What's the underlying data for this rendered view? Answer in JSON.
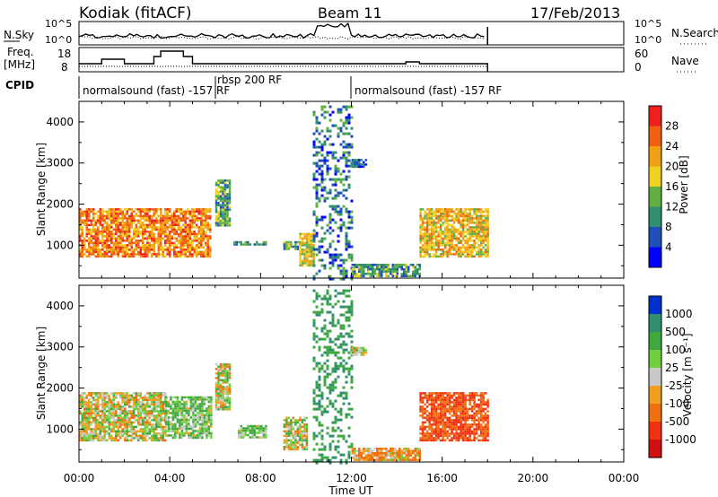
{
  "header": {
    "station": "Kodiak (fitACF)",
    "beam": "Beam 11",
    "date": "17/Feb/2013"
  },
  "noise_panel": {
    "left_label": "N.Sky",
    "right_label": "N.Search",
    "tick_top": "10^5",
    "tick_bottom": "10^0"
  },
  "freq_panel": {
    "left_label_1": "Freq.",
    "left_label_2": "[MHz]",
    "left_ticks": [
      "18",
      "8"
    ],
    "right_ticks": [
      "60",
      "0"
    ],
    "right_label": "Nave"
  },
  "cpid": {
    "label": "CPID",
    "segments": [
      {
        "text": "normalsound (fast) -157 RF",
        "start_hour": 0
      },
      {
        "text": "rbsp 200 RF",
        "start_hour": 6
      },
      {
        "text": "normalsound (fast) -157 RF",
        "start_hour": 12
      }
    ]
  },
  "time_axis": {
    "title": "Time UT",
    "ticks": [
      "00:00",
      "04:00",
      "08:00",
      "12:00",
      "16:00",
      "20:00",
      "00:00"
    ]
  },
  "power_colorbar": {
    "title": "Power [dB]",
    "ticks": [
      "28",
      "24",
      "20",
      "16",
      "12",
      "8",
      "4"
    ],
    "colors": [
      "#0000ff",
      "#1f4fb8",
      "#2f8f6f",
      "#5fb040",
      "#f0d020",
      "#f0a010",
      "#f06010",
      "#f02020"
    ]
  },
  "velocity_colorbar": {
    "title": "Velocity [m s⁻¹]",
    "ticks": [
      "1000",
      "500",
      "100",
      "25",
      "-25",
      "-100",
      "-500",
      "-1000"
    ],
    "colors": [
      "#0030d0",
      "#2f8f6f",
      "#3fa83f",
      "#70d040",
      "#c8c8c8",
      "#f0a020",
      "#f07010",
      "#f03010",
      "#d01010"
    ]
  },
  "chart_data": [
    {
      "type": "heatmap",
      "title": "Power",
      "ylabel": "Slant Range [km]",
      "xlabel": "Time UT",
      "xlim": [
        0,
        24
      ],
      "ylim": [
        200,
        4500
      ],
      "yticks": [
        1000,
        2000,
        3000,
        4000
      ],
      "regions": [
        {
          "t0": 0.0,
          "t1": 5.8,
          "r0": 700,
          "r1": 1900,
          "value_db": 24
        },
        {
          "t0": 6.0,
          "t1": 6.6,
          "r0": 1500,
          "r1": 2600,
          "value_db": 12
        },
        {
          "t0": 6.8,
          "t1": 8.2,
          "r0": 1000,
          "r1": 1100,
          "value_db": 10
        },
        {
          "t0": 9.0,
          "t1": 9.7,
          "r0": 900,
          "r1": 1100,
          "value_db": 12
        },
        {
          "t0": 9.7,
          "t1": 10.3,
          "r0": 500,
          "r1": 1300,
          "value_db": 18
        },
        {
          "t0": 10.3,
          "t1": 12.0,
          "r0": 200,
          "r1": 4400,
          "value_db": 8
        },
        {
          "t0": 12.0,
          "t1": 15.0,
          "r0": 250,
          "r1": 550,
          "value_db": 12
        },
        {
          "t0": 15.0,
          "t1": 18.0,
          "r0": 700,
          "r1": 1900,
          "value_db": 20
        },
        {
          "t0": 12.0,
          "t1": 12.6,
          "r0": 2900,
          "r1": 3100,
          "value_db": 6
        }
      ]
    },
    {
      "type": "heatmap",
      "title": "Velocity",
      "ylabel": "Slant Range [km]",
      "xlabel": "Time UT",
      "xlim": [
        0,
        24
      ],
      "ylim": [
        200,
        4500
      ],
      "yticks": [
        1000,
        2000,
        3000,
        4000
      ],
      "regions": [
        {
          "t0": 0.0,
          "t1": 3.8,
          "r0": 700,
          "r1": 1900,
          "value": 0
        },
        {
          "t0": 3.8,
          "t1": 5.8,
          "r0": 800,
          "r1": 1800,
          "value": 100
        },
        {
          "t0": 6.0,
          "t1": 6.6,
          "r0": 1500,
          "r1": 2600,
          "value": 0
        },
        {
          "t0": 7.0,
          "t1": 8.2,
          "r0": 800,
          "r1": 1100,
          "value": 100
        },
        {
          "t0": 9.0,
          "t1": 10.0,
          "r0": 500,
          "r1": 1300,
          "value": 0
        },
        {
          "t0": 10.3,
          "t1": 12.0,
          "r0": 200,
          "r1": 4400,
          "value": 500
        },
        {
          "t0": 12.0,
          "t1": 15.0,
          "r0": 250,
          "r1": 550,
          "value": -100
        },
        {
          "t0": 15.0,
          "t1": 18.0,
          "r0": 700,
          "r1": 1900,
          "value": -500
        },
        {
          "t0": 12.0,
          "t1": 12.6,
          "r0": 2800,
          "r1": 3000,
          "value": 0
        }
      ]
    }
  ]
}
